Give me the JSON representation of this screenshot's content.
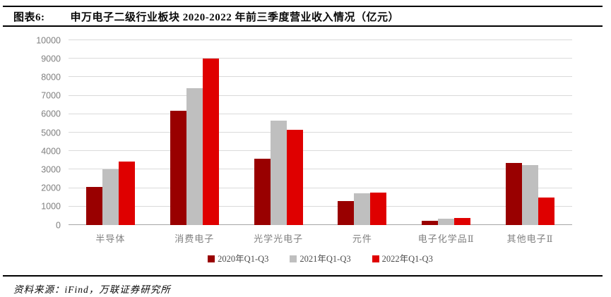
{
  "header": {
    "fig_label": "图表6:",
    "title": "申万电子二级行业板块 2020-2022 年前三季度营业收入情况（亿元）"
  },
  "footer": {
    "source": "资料来源：iFind，万联证券研究所"
  },
  "colors": {
    "series_2020": "#990000",
    "series_2021": "#BFBFBF",
    "series_2022": "#DF0000",
    "gridline": "#DADADA",
    "axis_text": "#7F7F7F",
    "title_text": "#0A0A0A"
  },
  "chart_data": {
    "type": "bar",
    "title": "申万电子二级行业板块 2020-2022 年前三季度营业收入情况（亿元）",
    "xlabel": "",
    "ylabel": "",
    "ylim": [
      0,
      10000
    ],
    "ytick_step": 1000,
    "grid": true,
    "legend_position": "bottom",
    "categories": [
      "半导体",
      "消费电子",
      "光学光电子",
      "元件",
      "电子化学品Ⅱ",
      "其他电子Ⅱ"
    ],
    "series": [
      {
        "name": "2020年Q1-Q3",
        "color": "#990000",
        "values": [
          2080,
          6200,
          3590,
          1280,
          230,
          3370
        ]
      },
      {
        "name": "2021年Q1-Q3",
        "color": "#BFBFBF",
        "values": [
          3000,
          7400,
          5640,
          1700,
          330,
          3230
        ]
      },
      {
        "name": "2022年Q1-Q3",
        "color": "#DF0000",
        "values": [
          3450,
          8990,
          5140,
          1760,
          390,
          1500
        ]
      }
    ]
  }
}
